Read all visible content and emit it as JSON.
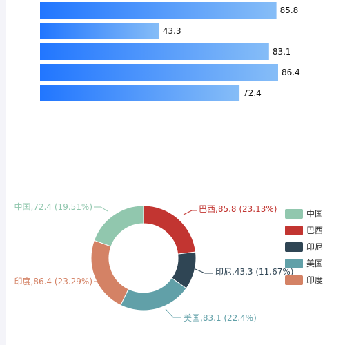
{
  "chart_data": [
    {
      "type": "bar",
      "orientation": "horizontal",
      "gradient": [
        "#2176ff",
        "#86bdf7"
      ],
      "values": [
        85.8,
        43.3,
        83.1,
        86.4,
        72.4
      ],
      "value_labels": [
        "85.8",
        "43.3",
        "83.1",
        "86.4",
        "72.4"
      ]
    },
    {
      "type": "pie",
      "donut": true,
      "legend_placement": "right",
      "slices": [
        {
          "name": "巴西",
          "value": 85.8,
          "percent": "23.13%",
          "label": "巴西,85.8 (23.13%)",
          "color": "#c23531"
        },
        {
          "name": "印尼",
          "value": 43.3,
          "percent": "11.67%",
          "label": "印尼,43.3 (11.67%)",
          "color": "#2f4554"
        },
        {
          "name": "美国",
          "value": 83.1,
          "percent": "22.4%",
          "label": "美国,83.1 (22.4%)",
          "color": "#61a0a8"
        },
        {
          "name": "印度",
          "value": 86.4,
          "percent": "23.29%",
          "label": "印度,86.4 (23.29%)",
          "color": "#d48265"
        },
        {
          "name": "中国",
          "value": 72.4,
          "percent": "19.51%",
          "label": "中国,72.4 (19.51%)",
          "color": "#91c7ae"
        }
      ],
      "legend": [
        {
          "name": "中国",
          "color": "#91c7ae"
        },
        {
          "name": "巴西",
          "color": "#c23531"
        },
        {
          "name": "印尼",
          "color": "#2f4554"
        },
        {
          "name": "美国",
          "color": "#61a0a8"
        },
        {
          "name": "印度",
          "color": "#d48265"
        }
      ]
    }
  ]
}
